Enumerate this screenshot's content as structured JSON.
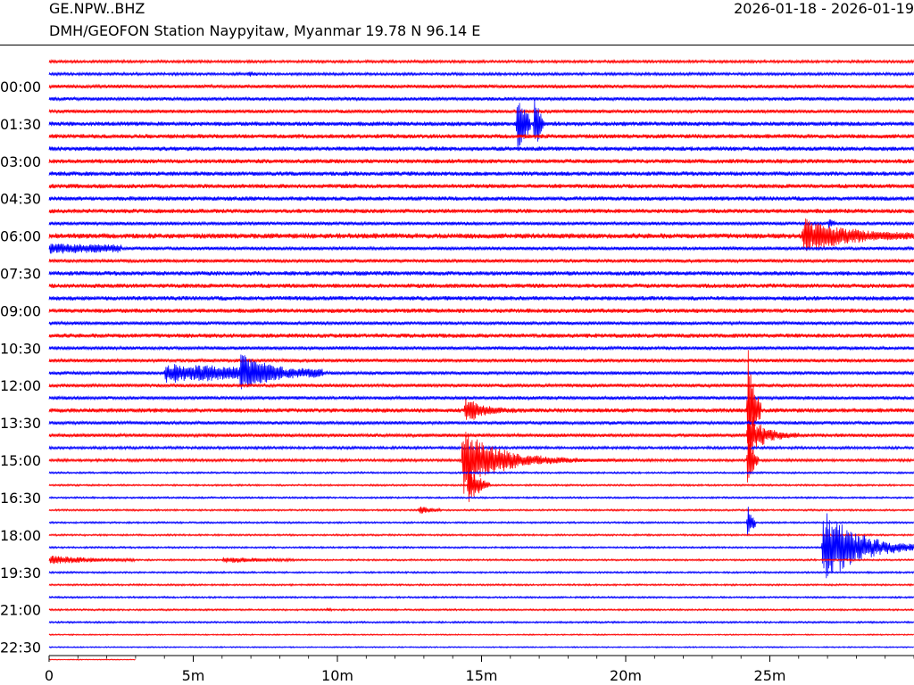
{
  "header": {
    "station_code": "GE.NPW..BHZ",
    "station_description": "DMH/GEOFON Station Naypyitaw, Myanmar  19.78 N 96.14 E",
    "date_range": "2026-01-18 - 2026-01-19"
  },
  "chart_data": {
    "type": "line",
    "title": "GE.NPW..BHZ",
    "xlabel": "",
    "ylabel": "",
    "x_units": "minutes",
    "xlim": [
      0,
      30
    ],
    "x_ticks": [
      {
        "value": 0,
        "label": "0"
      },
      {
        "value": 5,
        "label": "5m"
      },
      {
        "value": 10,
        "label": "10m"
      },
      {
        "value": 15,
        "label": "15m"
      },
      {
        "value": 20,
        "label": "20m"
      },
      {
        "value": 25,
        "label": "25m"
      }
    ],
    "x_minor_tick_step": 1,
    "trace_interval_minutes": 30,
    "trace_count": 49,
    "trace_colors": [
      "#ff0000",
      "#0000ff"
    ],
    "y_ticks": [
      {
        "trace": 2,
        "label": "00:00"
      },
      {
        "trace": 5,
        "label": "01:30"
      },
      {
        "trace": 8,
        "label": "03:00"
      },
      {
        "trace": 11,
        "label": "04:30"
      },
      {
        "trace": 14,
        "label": "06:00"
      },
      {
        "trace": 17,
        "label": "07:30"
      },
      {
        "trace": 20,
        "label": "09:00"
      },
      {
        "trace": 23,
        "label": "10:30"
      },
      {
        "trace": 26,
        "label": "12:00"
      },
      {
        "trace": 29,
        "label": "13:30"
      },
      {
        "trace": 32,
        "label": "15:00"
      },
      {
        "trace": 35,
        "label": "16:30"
      },
      {
        "trace": 38,
        "label": "18:00"
      },
      {
        "trace": 41,
        "label": "19:30"
      },
      {
        "trace": 44,
        "label": "21:00"
      },
      {
        "trace": 47,
        "label": "22:30"
      }
    ],
    "last_trace_end_minute": 3,
    "noise_levels": [
      1.5,
      1.5,
      2,
      2,
      2,
      2.5,
      2.5,
      2.5,
      2.5,
      2.5,
      2.5,
      2.5,
      2.5,
      2,
      3,
      2,
      2,
      2.5,
      2.5,
      2.5,
      2.5,
      2,
      2.5,
      2,
      2,
      2,
      2,
      2,
      2.5,
      2,
      2,
      1.5,
      1.5,
      1,
      1,
      1,
      1,
      1,
      1,
      1,
      1,
      1,
      1,
      1,
      1,
      1,
      0.7,
      0.7,
      0.5
    ],
    "events": [
      {
        "trace": 1,
        "start": 6.9,
        "duration": 0.3,
        "amplitude": 3,
        "decay": 0.2
      },
      {
        "trace": 5,
        "start": 16.2,
        "duration": 0.5,
        "amplitude": 40,
        "decay": 0.3
      },
      {
        "trace": 5,
        "start": 16.8,
        "duration": 0.35,
        "amplitude": 45,
        "decay": 0.2
      },
      {
        "trace": 13,
        "start": 27.0,
        "duration": 0.3,
        "amplitude": 5,
        "decay": 0.2
      },
      {
        "trace": 14,
        "start": 26.1,
        "duration": 4.0,
        "amplitude": 20,
        "decay": 1.4
      },
      {
        "trace": 15,
        "start": 0.0,
        "duration": 2.5,
        "amplitude": 5,
        "decay": 4.0
      },
      {
        "trace": 25,
        "start": 4.0,
        "duration": 5.5,
        "amplitude": 10,
        "decay": 5.0
      },
      {
        "trace": 25,
        "start": 6.6,
        "duration": 1.5,
        "amplitude": 20,
        "decay": 0.8
      },
      {
        "trace": 28,
        "start": 14.4,
        "duration": 2.0,
        "amplitude": 17,
        "decay": 0.5
      },
      {
        "trace": 28,
        "start": 24.2,
        "duration": 0.5,
        "amplitude": 95,
        "decay": 0.2
      },
      {
        "trace": 30,
        "start": 24.2,
        "duration": 1.8,
        "amplitude": 30,
        "decay": 0.5
      },
      {
        "trace": 32,
        "start": 14.3,
        "duration": 6.0,
        "amplitude": 40,
        "decay": 1.2
      },
      {
        "trace": 32,
        "start": 24.2,
        "duration": 0.4,
        "amplitude": 55,
        "decay": 0.15
      },
      {
        "trace": 34,
        "start": 14.5,
        "duration": 0.8,
        "amplitude": 25,
        "decay": 0.4
      },
      {
        "trace": 36,
        "start": 12.8,
        "duration": 0.8,
        "amplitude": 5,
        "decay": 0.4
      },
      {
        "trace": 37,
        "start": 24.2,
        "duration": 0.3,
        "amplitude": 30,
        "decay": 0.15
      },
      {
        "trace": 39,
        "start": 26.8,
        "duration": 3.2,
        "amplitude": 45,
        "decay": 1.2
      },
      {
        "trace": 40,
        "start": 0.0,
        "duration": 3.0,
        "amplitude": 5,
        "decay": 1.5
      },
      {
        "trace": 40,
        "start": 6.0,
        "duration": 2.5,
        "amplitude": 3,
        "decay": 1.5
      },
      {
        "trace": 44,
        "start": 9.6,
        "duration": 0.2,
        "amplitude": 3,
        "decay": 0.1
      }
    ]
  }
}
